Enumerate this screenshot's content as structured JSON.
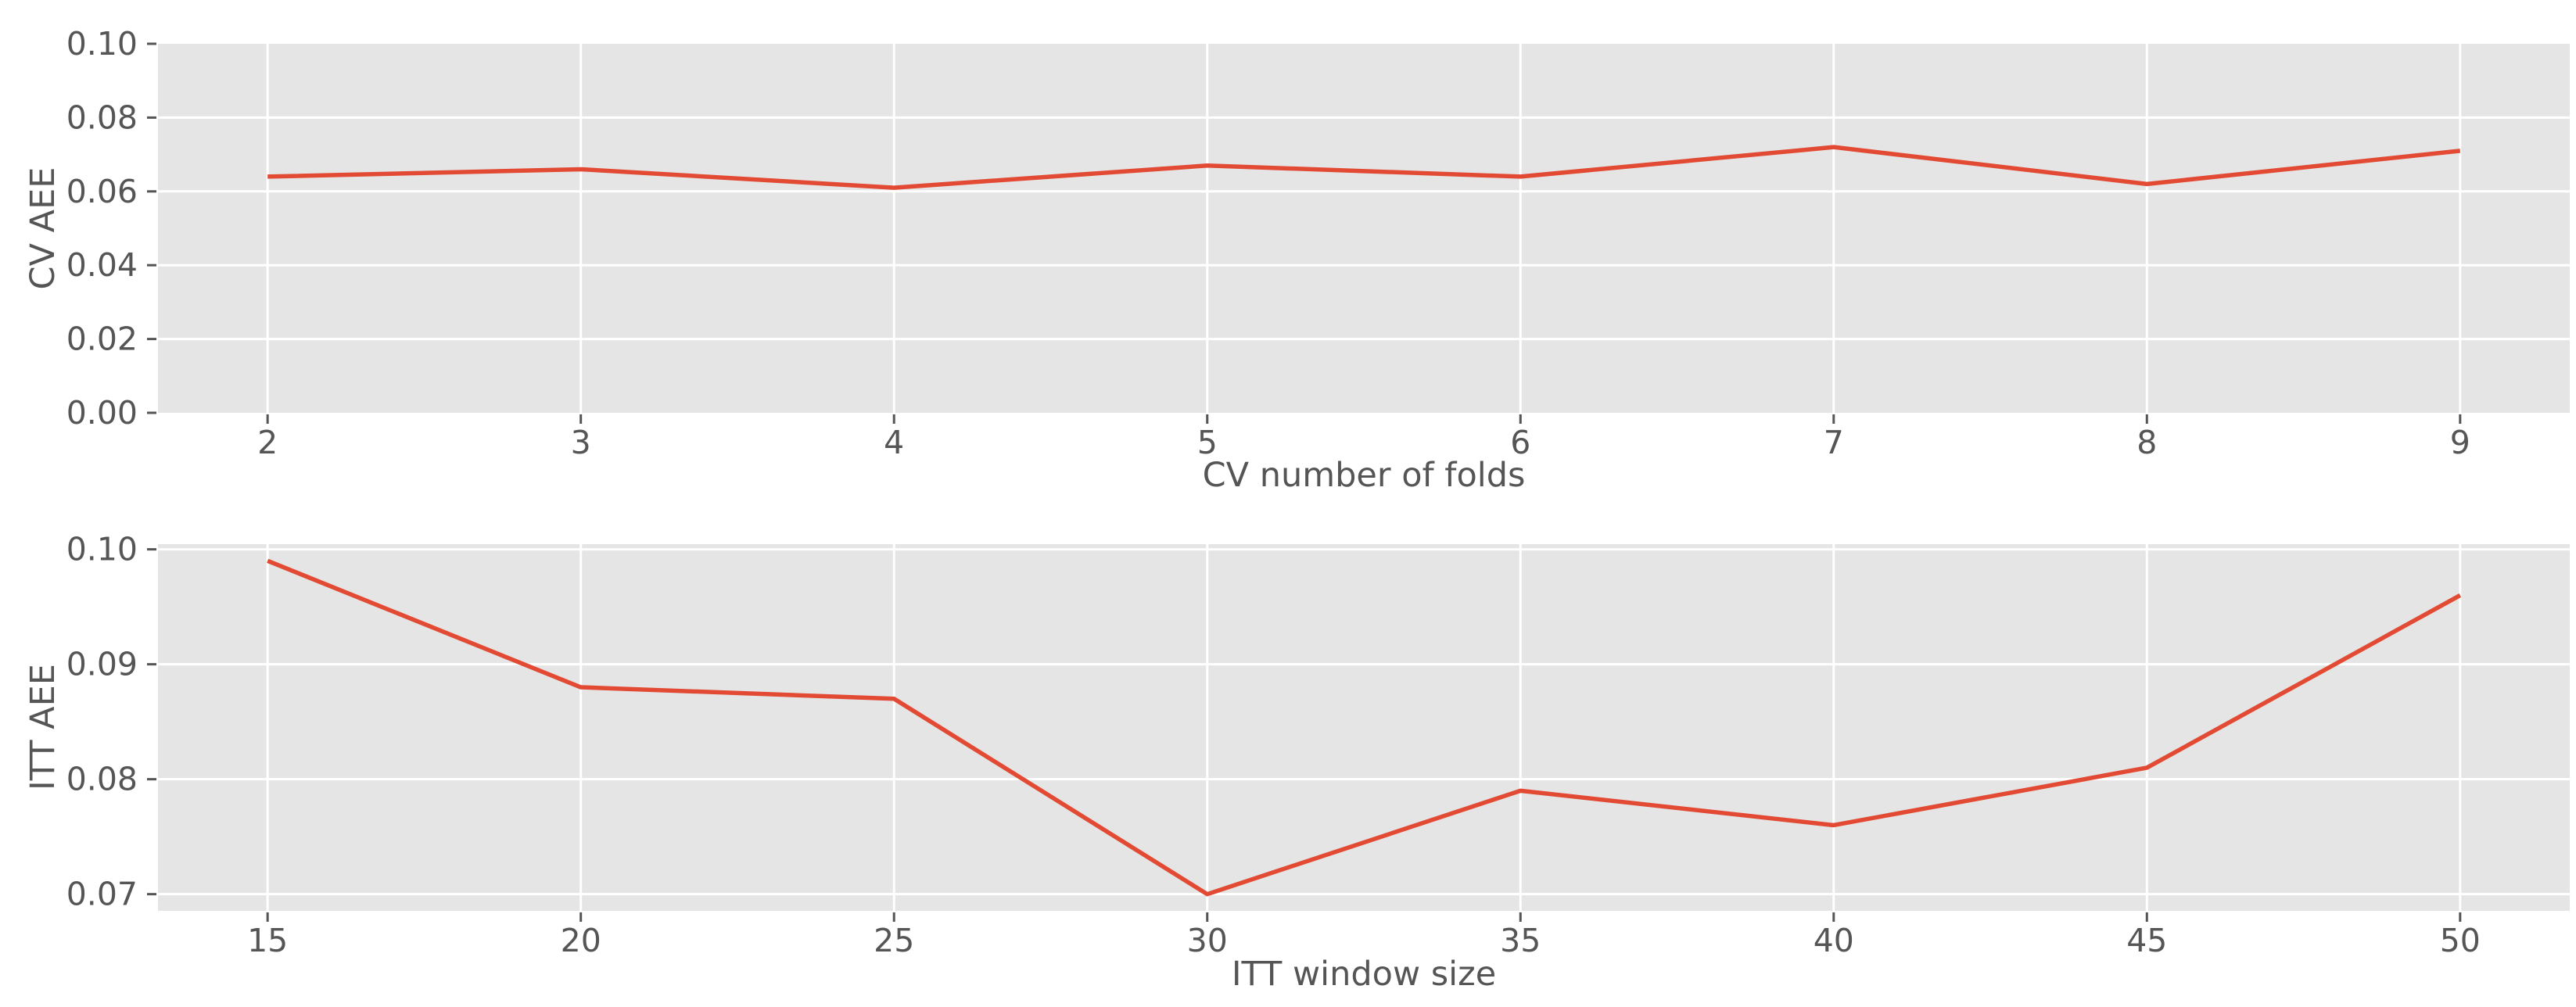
{
  "style": {
    "figure_background": "#ffffff",
    "axes_background": "#e5e5e5",
    "grid_color": "#ffffff",
    "line_color": "#e24a33",
    "text_color": "#555555"
  },
  "chart_data": [
    {
      "type": "line",
      "title": "",
      "xlabel": "CV number of folds",
      "ylabel": "CV AEE",
      "x": [
        2,
        3,
        4,
        5,
        6,
        7,
        8,
        9
      ],
      "y": [
        0.064,
        0.066,
        0.061,
        0.067,
        0.064,
        0.072,
        0.062,
        0.071
      ],
      "xlim": [
        1.65,
        9.35
      ],
      "ylim": [
        0.0,
        0.1
      ],
      "xticks": [
        2,
        3,
        4,
        5,
        6,
        7,
        8,
        9
      ],
      "xtick_labels": [
        "2",
        "3",
        "4",
        "5",
        "6",
        "7",
        "8",
        "9"
      ],
      "yticks": [
        0.0,
        0.02,
        0.04,
        0.06,
        0.08,
        0.1
      ],
      "ytick_labels": [
        "0.00",
        "0.02",
        "0.04",
        "0.06",
        "0.08",
        "0.10"
      ],
      "grid": true,
      "legend": null,
      "line_color": "#e24a33"
    },
    {
      "type": "line",
      "title": "",
      "xlabel": "ITT window size",
      "ylabel": "ITT AEE",
      "x": [
        15,
        20,
        25,
        30,
        35,
        40,
        45,
        50
      ],
      "y": [
        0.099,
        0.088,
        0.087,
        0.07,
        0.079,
        0.076,
        0.081,
        0.096
      ],
      "xlim": [
        13.25,
        51.75
      ],
      "ylim": [
        0.06855,
        0.10045
      ],
      "xticks": [
        15,
        20,
        25,
        30,
        35,
        40,
        45,
        50
      ],
      "xtick_labels": [
        "15",
        "20",
        "25",
        "30",
        "35",
        "40",
        "45",
        "50"
      ],
      "yticks": [
        0.07,
        0.08,
        0.09,
        0.1
      ],
      "ytick_labels": [
        "0.07",
        "0.08",
        "0.09",
        "0.10"
      ],
      "grid": true,
      "legend": null,
      "line_color": "#e24a33"
    }
  ]
}
